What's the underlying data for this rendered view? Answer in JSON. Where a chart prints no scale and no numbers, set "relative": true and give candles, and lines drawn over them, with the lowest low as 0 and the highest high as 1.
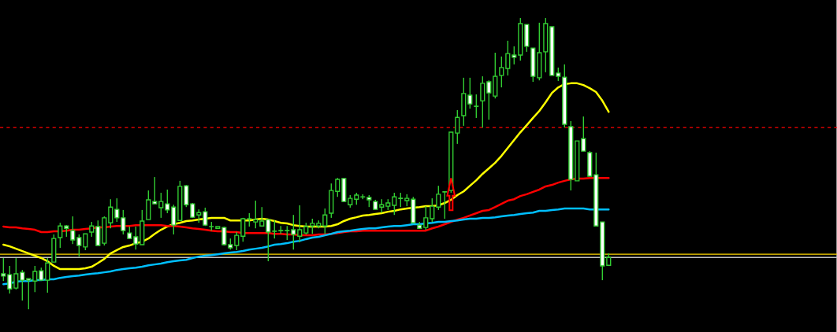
{
  "chart_data": {
    "type": "candlestick",
    "relative": true,
    "color": "#32cd32",
    "categories": [
      null,
      null,
      null,
      null,
      null,
      null,
      null,
      null,
      null,
      null,
      null,
      null,
      null,
      null,
      null,
      null,
      null,
      null,
      null,
      null,
      null,
      null,
      null,
      null,
      null,
      null,
      null,
      null,
      null,
      null,
      null,
      null,
      null,
      null,
      null,
      null,
      null,
      null,
      null,
      null,
      null,
      null,
      null,
      null,
      null,
      null,
      null,
      null,
      null,
      null,
      null,
      null,
      null,
      null,
      null,
      null,
      null,
      null,
      null,
      null,
      null,
      null,
      null,
      null,
      null,
      null,
      null,
      null,
      null,
      null,
      null,
      null,
      null,
      null,
      null,
      null,
      null,
      null,
      null,
      null,
      null,
      null,
      null,
      null,
      null,
      null,
      null,
      null,
      null,
      null,
      null,
      null,
      null,
      null,
      null,
      null,
      null
    ],
    "ohlc": [
      [
        0.122,
        0.176,
        0.097,
        0.114
      ],
      [
        0.119,
        0.149,
        0.054,
        0.07
      ],
      [
        0.073,
        0.176,
        0.068,
        0.122
      ],
      [
        0.127,
        0.135,
        0.03,
        0.1
      ],
      [
        0.105,
        0.105,
        0.0,
        0.1
      ],
      [
        0.097,
        0.149,
        0.059,
        0.13
      ],
      [
        0.132,
        0.143,
        0.1,
        0.1
      ],
      [
        0.1,
        0.176,
        0.057,
        0.159
      ],
      [
        0.162,
        0.257,
        0.162,
        0.243
      ],
      [
        0.246,
        0.297,
        0.211,
        0.286
      ],
      [
        0.286,
        0.289,
        0.249,
        0.278
      ],
      [
        0.27,
        0.319,
        0.224,
        0.238
      ],
      [
        0.246,
        0.257,
        0.181,
        0.219
      ],
      [
        0.214,
        0.259,
        0.203,
        0.259
      ],
      [
        0.265,
        0.3,
        0.249,
        0.286
      ],
      [
        0.284,
        0.305,
        0.219,
        0.219
      ],
      [
        0.227,
        0.319,
        0.219,
        0.314
      ],
      [
        0.297,
        0.378,
        0.278,
        0.351
      ],
      [
        0.343,
        0.381,
        0.3,
        0.314
      ],
      [
        0.314,
        0.341,
        0.257,
        0.27
      ],
      [
        0.262,
        0.284,
        0.243,
        0.243
      ],
      [
        0.249,
        0.284,
        0.205,
        0.224
      ],
      [
        0.222,
        0.341,
        0.222,
        0.303
      ],
      [
        0.308,
        0.408,
        0.308,
        0.376
      ],
      [
        0.37,
        0.454,
        0.362,
        0.362
      ],
      [
        0.349,
        0.4,
        0.314,
        0.37
      ],
      [
        0.362,
        0.411,
        0.33,
        0.341
      ],
      [
        0.351,
        0.359,
        0.257,
        0.289
      ],
      [
        0.305,
        0.441,
        0.305,
        0.422
      ],
      [
        0.424,
        0.427,
        0.351,
        0.359
      ],
      [
        0.362,
        0.365,
        0.314,
        0.316
      ],
      [
        0.324,
        0.343,
        0.297,
        0.332
      ],
      [
        0.335,
        0.349,
        0.286,
        0.289
      ],
      [
        0.284,
        0.3,
        0.27,
        0.284
      ],
      [
        0.278,
        0.284,
        0.278,
        0.284
      ],
      [
        0.281,
        0.284,
        0.219,
        0.222
      ],
      [
        0.222,
        0.243,
        0.205,
        0.211
      ],
      [
        0.219,
        0.265,
        0.203,
        0.254
      ],
      [
        0.251,
        0.314,
        0.232,
        0.311
      ],
      [
        0.311,
        0.33,
        0.284,
        0.311
      ],
      [
        0.3,
        0.373,
        0.278,
        0.308
      ],
      [
        0.286,
        0.351,
        0.284,
        0.303
      ],
      [
        0.308,
        0.308,
        0.165,
        0.265
      ],
      [
        0.268,
        0.305,
        0.243,
        0.268
      ],
      [
        0.27,
        0.286,
        0.259,
        0.27
      ],
      [
        0.27,
        0.286,
        0.238,
        0.27
      ],
      [
        0.273,
        0.324,
        0.205,
        0.257
      ],
      [
        0.251,
        0.357,
        0.23,
        0.273
      ],
      [
        0.262,
        0.297,
        0.257,
        0.284
      ],
      [
        0.286,
        0.311,
        0.259,
        0.295
      ],
      [
        0.286,
        0.305,
        0.278,
        0.295
      ],
      [
        0.286,
        0.346,
        0.259,
        0.324
      ],
      [
        0.33,
        0.432,
        0.314,
        0.408
      ],
      [
        0.405,
        0.451,
        0.386,
        0.446
      ],
      [
        0.449,
        0.449,
        0.37,
        0.37
      ],
      [
        0.359,
        0.392,
        0.349,
        0.381
      ],
      [
        0.378,
        0.4,
        0.359,
        0.392
      ],
      [
        0.386,
        0.395,
        0.378,
        0.386
      ],
      [
        0.384,
        0.392,
        0.351,
        0.376
      ],
      [
        0.37,
        0.376,
        0.343,
        0.343
      ],
      [
        0.351,
        0.378,
        0.332,
        0.359
      ],
      [
        0.354,
        0.378,
        0.341,
        0.365
      ],
      [
        0.357,
        0.4,
        0.324,
        0.386
      ],
      [
        0.381,
        0.4,
        0.351,
        0.381
      ],
      [
        0.373,
        0.395,
        0.354,
        0.381
      ],
      [
        0.378,
        0.386,
        0.297,
        0.297
      ],
      [
        0.289,
        0.3,
        0.278,
        0.278
      ],
      [
        0.281,
        0.354,
        0.273,
        0.314
      ],
      [
        0.311,
        0.381,
        0.3,
        0.354
      ],
      [
        0.351,
        0.424,
        0.341,
        0.395
      ],
      [
        0.403,
        0.403,
        0.311,
        0.403
      ],
      [
        0.408,
        0.608,
        0.4,
        0.608
      ],
      [
        0.605,
        0.684,
        0.568,
        0.659
      ],
      [
        0.665,
        0.795,
        0.63,
        0.741
      ],
      [
        0.735,
        0.795,
        0.689,
        0.705
      ],
      [
        0.697,
        0.738,
        0.657,
        0.697
      ],
      [
        0.716,
        0.8,
        0.624,
        0.776
      ],
      [
        0.781,
        0.786,
        0.651,
        0.743
      ],
      [
        0.732,
        0.881,
        0.724,
        0.8
      ],
      [
        0.803,
        0.868,
        0.762,
        0.83
      ],
      [
        0.827,
        0.922,
        0.803,
        0.878
      ],
      [
        0.873,
        0.903,
        0.841,
        0.865
      ],
      [
        0.873,
        1.0,
        0.854,
        0.981
      ],
      [
        0.978,
        0.978,
        0.884,
        0.903
      ],
      [
        0.897,
        0.897,
        0.781,
        0.8
      ],
      [
        0.795,
        0.984,
        0.786,
        0.881
      ],
      [
        0.884,
        1.0,
        0.814,
        0.981
      ],
      [
        0.97,
        0.97,
        0.803,
        0.803
      ],
      [
        0.811,
        0.83,
        0.784,
        0.8
      ],
      [
        0.797,
        0.841,
        0.624,
        0.635
      ],
      [
        0.627,
        0.646,
        0.408,
        0.446
      ],
      [
        0.441,
        0.578,
        0.441,
        0.578
      ],
      [
        0.586,
        0.662,
        0.543,
        0.543
      ],
      [
        0.538,
        0.543,
        0.457,
        0.457
      ],
      [
        0.462,
        0.538,
        0.284,
        0.286
      ],
      [
        0.3,
        0.3,
        0.1,
        0.149
      ],
      [
        0.151,
        0.192,
        0.149,
        0.178
      ]
    ],
    "series": [
      {
        "type": "line",
        "color": "#ffff00",
        "values": [
          0.222,
          0.216,
          0.208,
          0.2,
          0.192,
          0.184,
          0.176,
          0.165,
          0.149,
          0.138,
          0.138,
          0.138,
          0.138,
          0.141,
          0.146,
          0.159,
          0.173,
          0.192,
          0.203,
          0.214,
          0.219,
          0.227,
          0.232,
          0.243,
          0.259,
          0.273,
          0.284,
          0.292,
          0.297,
          0.303,
          0.305,
          0.308,
          0.311,
          0.314,
          0.314,
          0.314,
          0.305,
          0.305,
          0.305,
          0.305,
          0.308,
          0.311,
          0.308,
          0.303,
          0.297,
          0.295,
          0.289,
          0.286,
          0.284,
          0.284,
          0.284,
          0.284,
          0.286,
          0.292,
          0.303,
          0.311,
          0.316,
          0.322,
          0.324,
          0.327,
          0.33,
          0.335,
          0.338,
          0.343,
          0.346,
          0.349,
          0.351,
          0.354,
          0.354,
          0.357,
          0.365,
          0.376,
          0.392,
          0.405,
          0.424,
          0.443,
          0.465,
          0.484,
          0.503,
          0.527,
          0.554,
          0.581,
          0.608,
          0.632,
          0.657,
          0.681,
          0.711,
          0.743,
          0.762,
          0.773,
          0.776,
          0.776,
          0.77,
          0.759,
          0.746,
          0.716,
          0.678
        ]
      },
      {
        "type": "line",
        "color": "#ff0000",
        "values": [
          0.284,
          0.281,
          0.281,
          0.278,
          0.276,
          0.273,
          0.265,
          0.265,
          0.268,
          0.268,
          0.27,
          0.273,
          0.273,
          0.276,
          0.278,
          0.281,
          0.281,
          0.284,
          0.286,
          0.286,
          0.286,
          0.289,
          0.289,
          0.289,
          0.289,
          0.289,
          0.286,
          0.286,
          0.284,
          0.281,
          0.278,
          0.276,
          0.273,
          0.27,
          0.268,
          0.268,
          0.265,
          0.265,
          0.262,
          0.262,
          0.262,
          0.262,
          0.262,
          0.259,
          0.259,
          0.257,
          0.257,
          0.254,
          0.254,
          0.254,
          0.257,
          0.257,
          0.259,
          0.262,
          0.265,
          0.268,
          0.268,
          0.27,
          0.27,
          0.27,
          0.27,
          0.27,
          0.27,
          0.27,
          0.27,
          0.27,
          0.27,
          0.27,
          0.278,
          0.284,
          0.292,
          0.3,
          0.308,
          0.314,
          0.322,
          0.33,
          0.338,
          0.341,
          0.351,
          0.362,
          0.373,
          0.378,
          0.389,
          0.395,
          0.403,
          0.411,
          0.422,
          0.427,
          0.435,
          0.441,
          0.446,
          0.449,
          0.449,
          0.451,
          0.451,
          0.451,
          0.451
        ]
      },
      {
        "type": "line",
        "color": "#00bfff",
        "values": [
          0.086,
          0.089,
          0.095,
          0.097,
          0.097,
          0.1,
          0.1,
          0.103,
          0.103,
          0.108,
          0.111,
          0.114,
          0.116,
          0.119,
          0.122,
          0.124,
          0.127,
          0.13,
          0.135,
          0.138,
          0.141,
          0.143,
          0.146,
          0.151,
          0.154,
          0.157,
          0.162,
          0.165,
          0.168,
          0.17,
          0.176,
          0.181,
          0.184,
          0.186,
          0.189,
          0.192,
          0.195,
          0.197,
          0.2,
          0.205,
          0.208,
          0.211,
          0.216,
          0.222,
          0.224,
          0.227,
          0.232,
          0.235,
          0.241,
          0.246,
          0.249,
          0.254,
          0.259,
          0.265,
          0.268,
          0.27,
          0.273,
          0.276,
          0.278,
          0.278,
          0.281,
          0.284,
          0.286,
          0.286,
          0.289,
          0.292,
          0.292,
          0.295,
          0.297,
          0.3,
          0.3,
          0.303,
          0.305,
          0.308,
          0.311,
          0.311,
          0.314,
          0.314,
          0.316,
          0.319,
          0.322,
          0.324,
          0.327,
          0.33,
          0.332,
          0.338,
          0.338,
          0.341,
          0.343,
          0.346,
          0.346,
          0.346,
          0.346,
          0.343,
          0.343,
          0.343,
          0.343
        ]
      }
    ],
    "ref_lines": [
      {
        "axis": "y",
        "value": 0.624,
        "color": "#ff0000",
        "line_style": "dashed"
      },
      {
        "axis": "y",
        "value": 0.189,
        "color": "#ffd700",
        "line_style": "solid"
      },
      {
        "axis": "y",
        "value": 0.178,
        "color": "#c0c0c0",
        "line_style": "solid"
      }
    ]
  }
}
